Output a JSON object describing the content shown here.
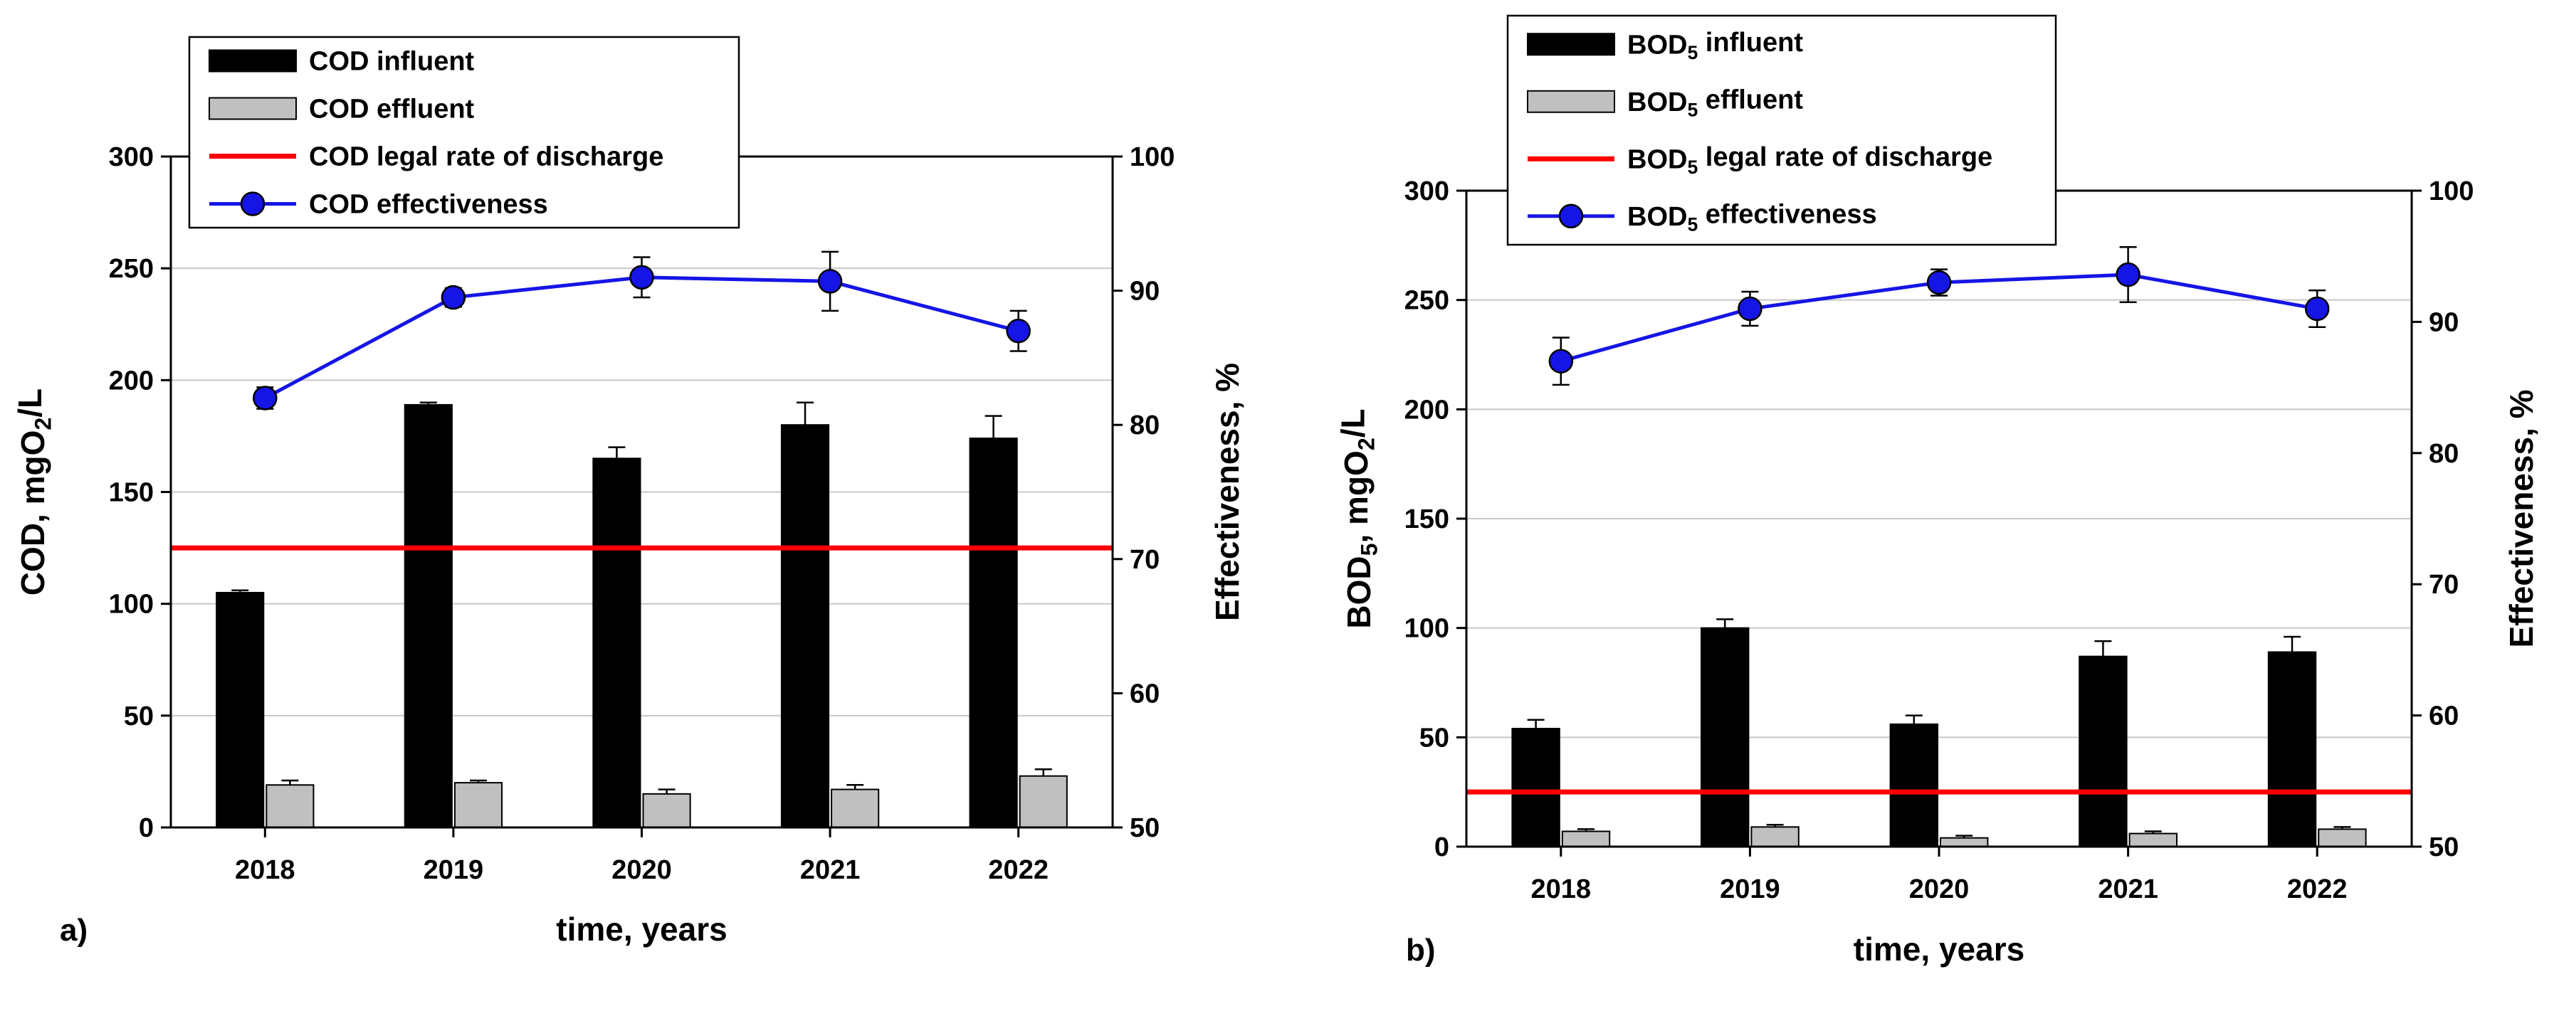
{
  "chart_data": [
    {
      "type": "bar",
      "panel_label": "a)",
      "categories": [
        "2018",
        "2019",
        "2020",
        "2021",
        "2022"
      ],
      "xlabel": "time, years",
      "ylabel": "COD, mgO2/L",
      "ylabel_parts": {
        "main": "COD, mgO",
        "sub": "2",
        "tail": "/L"
      },
      "ylim": [
        0,
        300
      ],
      "yticks": [
        0,
        50,
        100,
        150,
        200,
        250,
        300
      ],
      "y2label": "Effectiveness, %",
      "y2lim": [
        50,
        100
      ],
      "y2ticks": [
        50,
        60,
        70,
        80,
        90,
        100
      ],
      "grid": true,
      "legend_placement": "top-left",
      "series": [
        {
          "name": "COD influent",
          "legend": {
            "main": "COD influent",
            "sub": "",
            "tail": ""
          },
          "kind": "bar",
          "color": "#000000",
          "values": [
            105,
            189,
            165,
            180,
            174
          ],
          "errors": [
            1,
            1,
            5,
            10,
            10
          ]
        },
        {
          "name": "COD effluent",
          "legend": {
            "main": "COD effluent",
            "sub": "",
            "tail": ""
          },
          "kind": "bar",
          "color": "#c0c0c0",
          "values": [
            19,
            20,
            15,
            17,
            23
          ],
          "errors": [
            2,
            1,
            2,
            2,
            3
          ]
        },
        {
          "name": "COD legal rate of discharge",
          "legend": {
            "main": "COD legal rate of discharge",
            "sub": "",
            "tail": ""
          },
          "kind": "hline",
          "color": "#ff0000",
          "value": 125
        },
        {
          "name": "COD effectiveness",
          "legend": {
            "main": "COD effectiveness",
            "sub": "",
            "tail": ""
          },
          "kind": "line",
          "axis": "right",
          "color": "#1515e6",
          "values": [
            82,
            89.5,
            91,
            90.7,
            87
          ],
          "errors": [
            0.8,
            0.7,
            1.5,
            2.2,
            1.5
          ]
        }
      ]
    },
    {
      "type": "bar",
      "panel_label": "b)",
      "categories": [
        "2018",
        "2019",
        "2020",
        "2021",
        "2022"
      ],
      "xlabel": "time, years",
      "ylabel": "BOD5, mgO2/L",
      "ylabel_parts": {
        "main": "BOD",
        "sub": "5",
        "tail": ", mgO",
        "sub2": "2",
        "tail2": "/L"
      },
      "ylim": [
        0,
        300
      ],
      "yticks": [
        0,
        50,
        100,
        150,
        200,
        250,
        300
      ],
      "y2label": "Effectiveness, %",
      "y2lim": [
        50,
        100
      ],
      "y2ticks": [
        50,
        60,
        70,
        80,
        90,
        100
      ],
      "grid": true,
      "legend_placement": "top-left",
      "series": [
        {
          "name": "BOD5 influent",
          "legend": {
            "main": "BOD",
            "sub": "5",
            "tail": " influent"
          },
          "kind": "bar",
          "color": "#000000",
          "values": [
            54,
            100,
            56,
            87,
            89
          ],
          "errors": [
            4,
            4,
            4,
            7,
            7
          ]
        },
        {
          "name": "BOD5 effluent",
          "legend": {
            "main": "BOD",
            "sub": "5",
            "tail": " effluent"
          },
          "kind": "bar",
          "color": "#c0c0c0",
          "values": [
            7,
            9,
            4,
            6,
            8
          ],
          "errors": [
            1,
            1,
            1,
            1,
            1
          ]
        },
        {
          "name": "BOD5 legal rate of discharge",
          "legend": {
            "main": "BOD",
            "sub": "5",
            "tail": " legal rate of discharge"
          },
          "kind": "hline",
          "color": "#ff0000",
          "value": 25
        },
        {
          "name": "BOD5 effectiveness",
          "legend": {
            "main": "BOD",
            "sub": "5",
            "tail": " effectiveness"
          },
          "kind": "line",
          "axis": "right",
          "color": "#1515e6",
          "values": [
            87,
            91,
            93,
            93.6,
            91
          ],
          "errors": [
            1.8,
            1.3,
            1.0,
            2.1,
            1.4
          ]
        }
      ]
    }
  ]
}
